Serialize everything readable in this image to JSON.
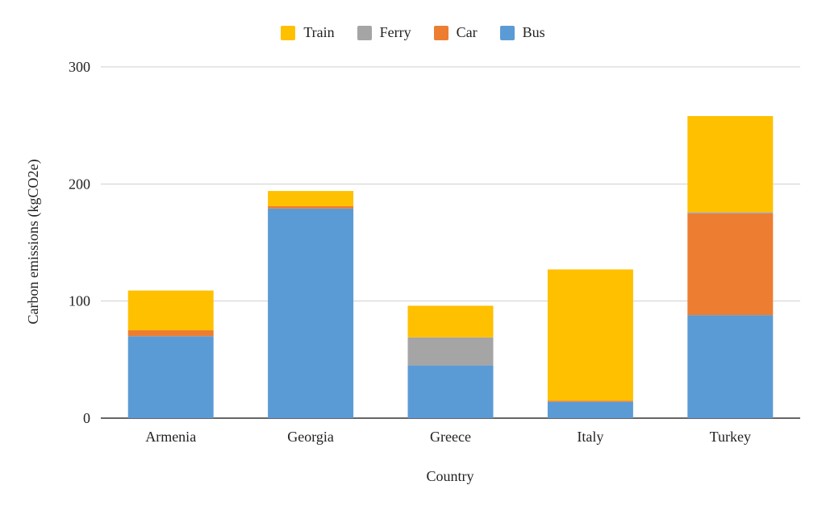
{
  "chart_data": {
    "type": "bar",
    "stacked": true,
    "categories": [
      "Armenia",
      "Georgia",
      "Greece",
      "Italy",
      "Turkey"
    ],
    "series": [
      {
        "name": "Bus",
        "color": "#5B9BD5",
        "values": [
          70,
          179,
          45,
          14,
          88
        ]
      },
      {
        "name": "Car",
        "color": "#ED7D31",
        "values": [
          5,
          2,
          0,
          1,
          87
        ]
      },
      {
        "name": "Ferry",
        "color": "#A5A5A5",
        "values": [
          0,
          0,
          24,
          0,
          1
        ]
      },
      {
        "name": "Train",
        "color": "#FFC000",
        "values": [
          34,
          13,
          27,
          112,
          82
        ]
      }
    ],
    "legend_order": [
      "Train",
      "Ferry",
      "Car",
      "Bus"
    ],
    "legend_position": "top",
    "title": "",
    "xlabel": "Country",
    "ylabel": "Carbon emissions (kgCO2e)",
    "ylim": [
      0,
      300
    ],
    "yticks": [
      0,
      100,
      200,
      300
    ],
    "grid": true
  }
}
